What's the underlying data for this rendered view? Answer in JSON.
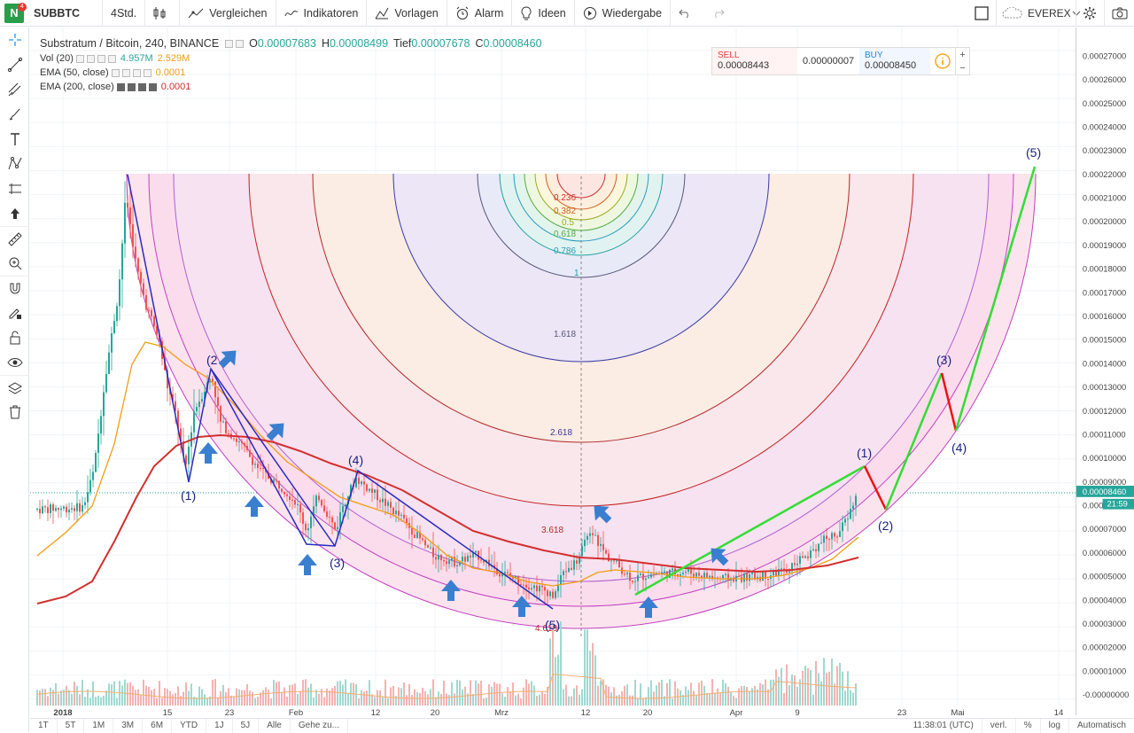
{
  "toolbar": {
    "badge": "4",
    "logo": "N",
    "symbol": "SUBBTC",
    "interval": "4Std.",
    "compare": "Vergleichen",
    "indicators": "Indikatoren",
    "templates": "Vorlagen",
    "alert": "Alarm",
    "ideas": "Ideen",
    "replay": "Wiedergabe",
    "broker": "EVEREX"
  },
  "legend": {
    "main_title": "Substratum / Bitcoin, 240, BINANCE",
    "o_label": "O",
    "o_value": "0.00007683",
    "h_label": "H",
    "h_value": "0.00008499",
    "l_label": "Tief",
    "l_value": "0.00007678",
    "c_label": "C",
    "c_value": "0.00008460",
    "vol_label": "Vol (20)",
    "vol_value1": "4.957M",
    "vol_value2": "2.529M",
    "ema50_label": "EMA (50, close)",
    "ema50_value": "0.0001",
    "ema200_label": "EMA (200, close)",
    "ema200_value": "0.0001"
  },
  "order_panel": {
    "sell_label": "SELL",
    "sell_price": "0.00008443",
    "spread": "0.00000007",
    "buy_label": "BUY",
    "buy_price": "0.00008450"
  },
  "price_axis": {
    "ticks": [
      "0.00027000",
      "0.00026000",
      "0.00025000",
      "0.00024000",
      "0.00023000",
      "0.00022000",
      "0.00021000",
      "0.00020000",
      "0.00019000",
      "0.00018000",
      "0.00017000",
      "0.00016000",
      "0.00015000",
      "0.00014000",
      "0.00013000",
      "0.00012000",
      "0.00011000",
      "0.00010000",
      "0.00009000",
      "0.00008000",
      "0.00007000",
      "0.00006000",
      "0.00005000",
      "0.00004000",
      "0.00003000",
      "0.00002000",
      "0.00001000",
      "-0.00000000"
    ],
    "current_price": "0.00008460",
    "countdown": "21:59"
  },
  "time_axis": [
    "2018",
    "15",
    "23",
    "Feb",
    "12",
    "20",
    "Mrz",
    "12",
    "20",
    "Apr",
    "9",
    "23",
    "Mai",
    "14"
  ],
  "fib_levels": [
    "0.236",
    "0.382",
    "0.5",
    "0.618",
    "0.786",
    "1",
    "1.618",
    "2.618",
    "3.618",
    "4.618"
  ],
  "wave_labels": {
    "first": [
      "(1)",
      "(2",
      "(3)",
      "(4)",
      "(5)"
    ],
    "projection": [
      "(1)",
      "(2)",
      "(3)",
      "(4)",
      "(5)"
    ]
  },
  "bottom_bar": {
    "ranges": [
      "1T",
      "5T",
      "1M",
      "3M",
      "6M",
      "YTD",
      "1J",
      "5J",
      "Alle"
    ],
    "goto": "Gehe zu...",
    "time": "11:38:01 (UTC)",
    "options": [
      "verl.",
      "%",
      "log",
      "Automatisch"
    ]
  },
  "colors": {
    "ema50": "#f39c12",
    "ema200": "#d32f2f",
    "wave_green": "#33dd33",
    "wave_red": "#ee1111",
    "arrow_blue": "#3a7ed0",
    "candle_up": "#26a69a",
    "candle_down": "#ef5350",
    "price_label": "#26a69a"
  }
}
